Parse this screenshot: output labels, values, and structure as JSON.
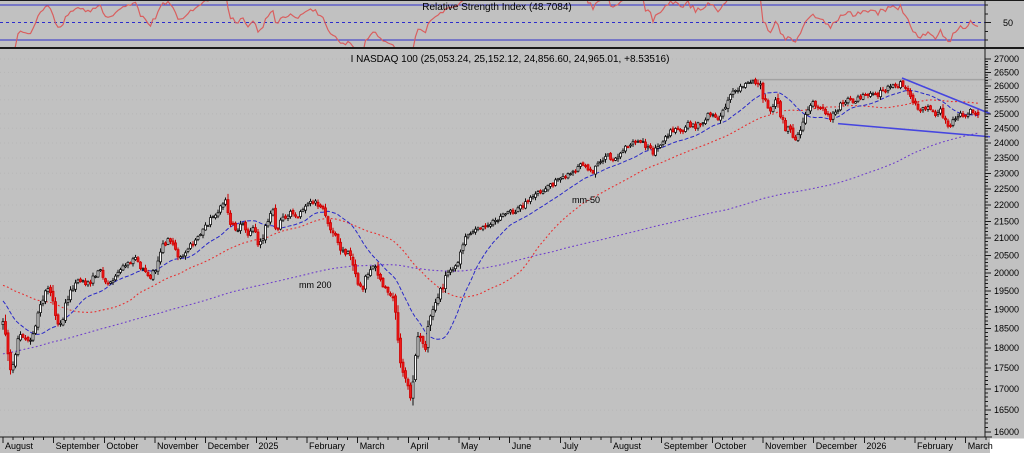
{
  "app": {
    "background": "#c1c1c1",
    "frame_color": "#1a1a1a",
    "grid_color": "#b7b7b7",
    "corner_box_color": "#ffffff"
  },
  "rsi_panel": {
    "title": "Relative Strength Index (48.7084)",
    "title_color": "#2a2a2a",
    "axis_label": "50",
    "levels": {
      "upper": 70,
      "mid": 50,
      "lower": 30
    },
    "level_color": "#2d2dcc",
    "line_color": "#d95f5f"
  },
  "main_panel": {
    "title": "I NASDAQ 100 (25,053.24, 25,152.12, 24,856.60, 24,965.01, +8.53516)",
    "ma200_label": "mm 200",
    "ma50_label": "mm-50",
    "ma200_color": "#7040cc",
    "ma50_color": "#e83030",
    "ma20_color": "#2929c8",
    "up_candle_fill": "#ffffff",
    "up_candle_stroke": "#111111",
    "down_candle_fill": "#ef1a1a",
    "down_candle_stroke": "#cc0000",
    "trend_line_color": "#4545e0",
    "resistance_line_color": "#a2a2a2"
  },
  "y_axis": {
    "min": 16000,
    "max": 27000,
    "major_step": 500,
    "minor_step": 100,
    "scale": "log",
    "labels": [
      "16000",
      "16500",
      "17000",
      "17500",
      "18000",
      "18500",
      "19000",
      "19500",
      "20000",
      "20500",
      "21000",
      "21500",
      "22000",
      "22500",
      "23000",
      "23500",
      "24000",
      "24500",
      "25000",
      "25500",
      "26000",
      "26500",
      "27000"
    ]
  },
  "x_axis": {
    "labels": [
      "August",
      "September",
      "October",
      "November",
      "December",
      "2025",
      "February",
      "March",
      "April",
      "May",
      "June",
      "July",
      "August",
      "September",
      "October",
      "November",
      "December",
      "2026",
      "February",
      "March"
    ]
  },
  "chart_data": {
    "type": "candlestick",
    "symbol": "NASDAQ 100",
    "title": "I NASDAQ 100 (25,053.24, 25,152.12, 24,856.60, 24,965.01, +8.53516)",
    "last_quote": {
      "open": 25053.24,
      "high": 25152.12,
      "low": 24856.6,
      "close": 24965.01,
      "change": 8.53516
    },
    "rsi": {
      "title": "Relative Strength Index (48.7084)",
      "period": 14,
      "last": 48.7084,
      "levels": [
        30,
        50,
        70
      ],
      "range": [
        0,
        100
      ]
    },
    "x_categories": [
      "Aug 2024",
      "Sep 2024",
      "Oct 2024",
      "Nov 2024",
      "Dec 2024",
      "Jan 2025",
      "Feb 2025",
      "Mar 2025",
      "Apr 2025",
      "May 2025",
      "Jun 2025",
      "Jul 2025",
      "Aug 2025",
      "Sep 2025",
      "Oct 2025",
      "Nov 2025",
      "Dec 2025",
      "Jan 2026",
      "Feb 2026",
      "Mar 2026"
    ],
    "ylim": [
      16000,
      27000
    ],
    "scale": "log",
    "grid": "horizontal-dotted",
    "overlays": [
      {
        "label": "mm 200",
        "type": "sma",
        "period": 200,
        "style": "dotted",
        "color": "#7040cc"
      },
      {
        "label": "mm-50",
        "type": "sma",
        "period": 50,
        "style": "dotted",
        "color": "#e83030"
      },
      {
        "label": "",
        "type": "sma",
        "period": 20,
        "style": "dashed",
        "color": "#2929c8"
      }
    ],
    "price_path": [
      [
        3,
        18650
      ],
      [
        6,
        18150
      ],
      [
        10,
        17550
      ],
      [
        13,
        17480
      ],
      [
        16,
        18050
      ],
      [
        22,
        18350
      ],
      [
        30,
        18150
      ],
      [
        38,
        18850
      ],
      [
        45,
        19450
      ],
      [
        50,
        19600
      ],
      [
        55,
        18950
      ],
      [
        60,
        18550
      ],
      [
        68,
        19300
      ],
      [
        78,
        19850
      ],
      [
        88,
        19700
      ],
      [
        95,
        19950
      ],
      [
        101,
        20060
      ],
      [
        108,
        19720
      ],
      [
        118,
        20000
      ],
      [
        128,
        20250
      ],
      [
        136,
        20400
      ],
      [
        143,
        20100
      ],
      [
        150,
        19870
      ],
      [
        157,
        20250
      ],
      [
        163,
        20750
      ],
      [
        170,
        21000
      ],
      [
        176,
        20550
      ],
      [
        182,
        20350
      ],
      [
        190,
        20800
      ],
      [
        199,
        21100
      ],
      [
        208,
        21450
      ],
      [
        218,
        21800
      ],
      [
        226,
        22120
      ],
      [
        231,
        21450
      ],
      [
        237,
        21250
      ],
      [
        243,
        21500
      ],
      [
        248,
        21150
      ],
      [
        254,
        21300
      ],
      [
        259,
        20730
      ],
      [
        266,
        21400
      ],
      [
        272,
        21950
      ],
      [
        276,
        21180
      ],
      [
        283,
        21600
      ],
      [
        290,
        21750
      ],
      [
        297,
        21660
      ],
      [
        305,
        21900
      ],
      [
        315,
        22150
      ],
      [
        322,
        21850
      ],
      [
        330,
        21350
      ],
      [
        338,
        20900
      ],
      [
        344,
        20500
      ],
      [
        350,
        20650
      ],
      [
        356,
        19900
      ],
      [
        362,
        19550
      ],
      [
        368,
        20050
      ],
      [
        373,
        20250
      ],
      [
        380,
        19750
      ],
      [
        387,
        19500
      ],
      [
        392,
        19350
      ],
      [
        397,
        18600
      ],
      [
        402,
        17450
      ],
      [
        406,
        17150
      ],
      [
        410,
        16800
      ],
      [
        414,
        17250
      ],
      [
        417,
        18400
      ],
      [
        421,
        18300
      ],
      [
        425,
        17950
      ],
      [
        430,
        18700
      ],
      [
        436,
        19150
      ],
      [
        441,
        19500
      ],
      [
        447,
        19950
      ],
      [
        453,
        20150
      ],
      [
        459,
        20300
      ],
      [
        464,
        20900
      ],
      [
        470,
        21150
      ],
      [
        477,
        21300
      ],
      [
        485,
        21350
      ],
      [
        492,
        21450
      ],
      [
        500,
        21650
      ],
      [
        508,
        21850
      ],
      [
        515,
        21750
      ],
      [
        522,
        21950
      ],
      [
        530,
        22150
      ],
      [
        538,
        22350
      ],
      [
        546,
        22500
      ],
      [
        554,
        22700
      ],
      [
        562,
        22850
      ],
      [
        570,
        23000
      ],
      [
        578,
        23200
      ],
      [
        585,
        23300
      ],
      [
        592,
        23050
      ],
      [
        600,
        23350
      ],
      [
        608,
        23600
      ],
      [
        615,
        23400
      ],
      [
        623,
        23750
      ],
      [
        632,
        24000
      ],
      [
        639,
        24100
      ],
      [
        646,
        23900
      ],
      [
        653,
        23700
      ],
      [
        660,
        24000
      ],
      [
        668,
        24300
      ],
      [
        675,
        24500
      ],
      [
        682,
        24400
      ],
      [
        689,
        24650
      ],
      [
        695,
        24550
      ],
      [
        702,
        24700
      ],
      [
        710,
        25000
      ],
      [
        716,
        24800
      ],
      [
        722,
        25100
      ],
      [
        728,
        25500
      ],
      [
        734,
        25800
      ],
      [
        741,
        25950
      ],
      [
        748,
        26050
      ],
      [
        755,
        26150
      ],
      [
        760,
        26000
      ],
      [
        765,
        25400
      ],
      [
        770,
        25100
      ],
      [
        775,
        25550
      ],
      [
        780,
        25000
      ],
      [
        785,
        24500
      ],
      [
        790,
        24450
      ],
      [
        795,
        24050
      ],
      [
        799,
        24300
      ],
      [
        804,
        24800
      ],
      [
        809,
        25200
      ],
      [
        814,
        25400
      ],
      [
        819,
        25250
      ],
      [
        825,
        25050
      ],
      [
        831,
        24850
      ],
      [
        836,
        25100
      ],
      [
        842,
        25400
      ],
      [
        848,
        25550
      ],
      [
        854,
        25450
      ],
      [
        860,
        25550
      ],
      [
        866,
        25650
      ],
      [
        872,
        25800
      ],
      [
        878,
        25700
      ],
      [
        884,
        25850
      ],
      [
        890,
        25950
      ],
      [
        896,
        26000
      ],
      [
        902,
        26100
      ],
      [
        906,
        25950
      ],
      [
        910,
        25600
      ],
      [
        915,
        25300
      ],
      [
        920,
        25050
      ],
      [
        925,
        25250
      ],
      [
        930,
        25150
      ],
      [
        935,
        25000
      ],
      [
        940,
        25200
      ],
      [
        945,
        24800
      ],
      [
        950,
        24550
      ],
      [
        955,
        24850
      ],
      [
        960,
        25050
      ],
      [
        965,
        24900
      ],
      [
        970,
        25150
      ],
      [
        974,
        25000
      ],
      [
        978,
        24965
      ]
    ],
    "prehistory_path": [
      [
        -210,
        14800
      ],
      [
        -180,
        15800
      ],
      [
        -150,
        16500
      ],
      [
        -120,
        17300
      ],
      [
        -90,
        18300
      ],
      [
        -60,
        19000
      ],
      [
        -35,
        19900
      ],
      [
        -22,
        20500
      ],
      [
        -10,
        19100
      ],
      [
        -1,
        18700
      ]
    ],
    "annotations": {
      "resistance_line": {
        "x1": 750,
        "x2": 992,
        "value": 26230
      },
      "trend_lines": [
        {
          "x1": 902,
          "v1": 26290,
          "x2": 990,
          "v2": 25010
        },
        {
          "x1": 838,
          "v1": 24660,
          "x2": 990,
          "v2": 24210
        }
      ]
    },
    "seed": 11
  }
}
